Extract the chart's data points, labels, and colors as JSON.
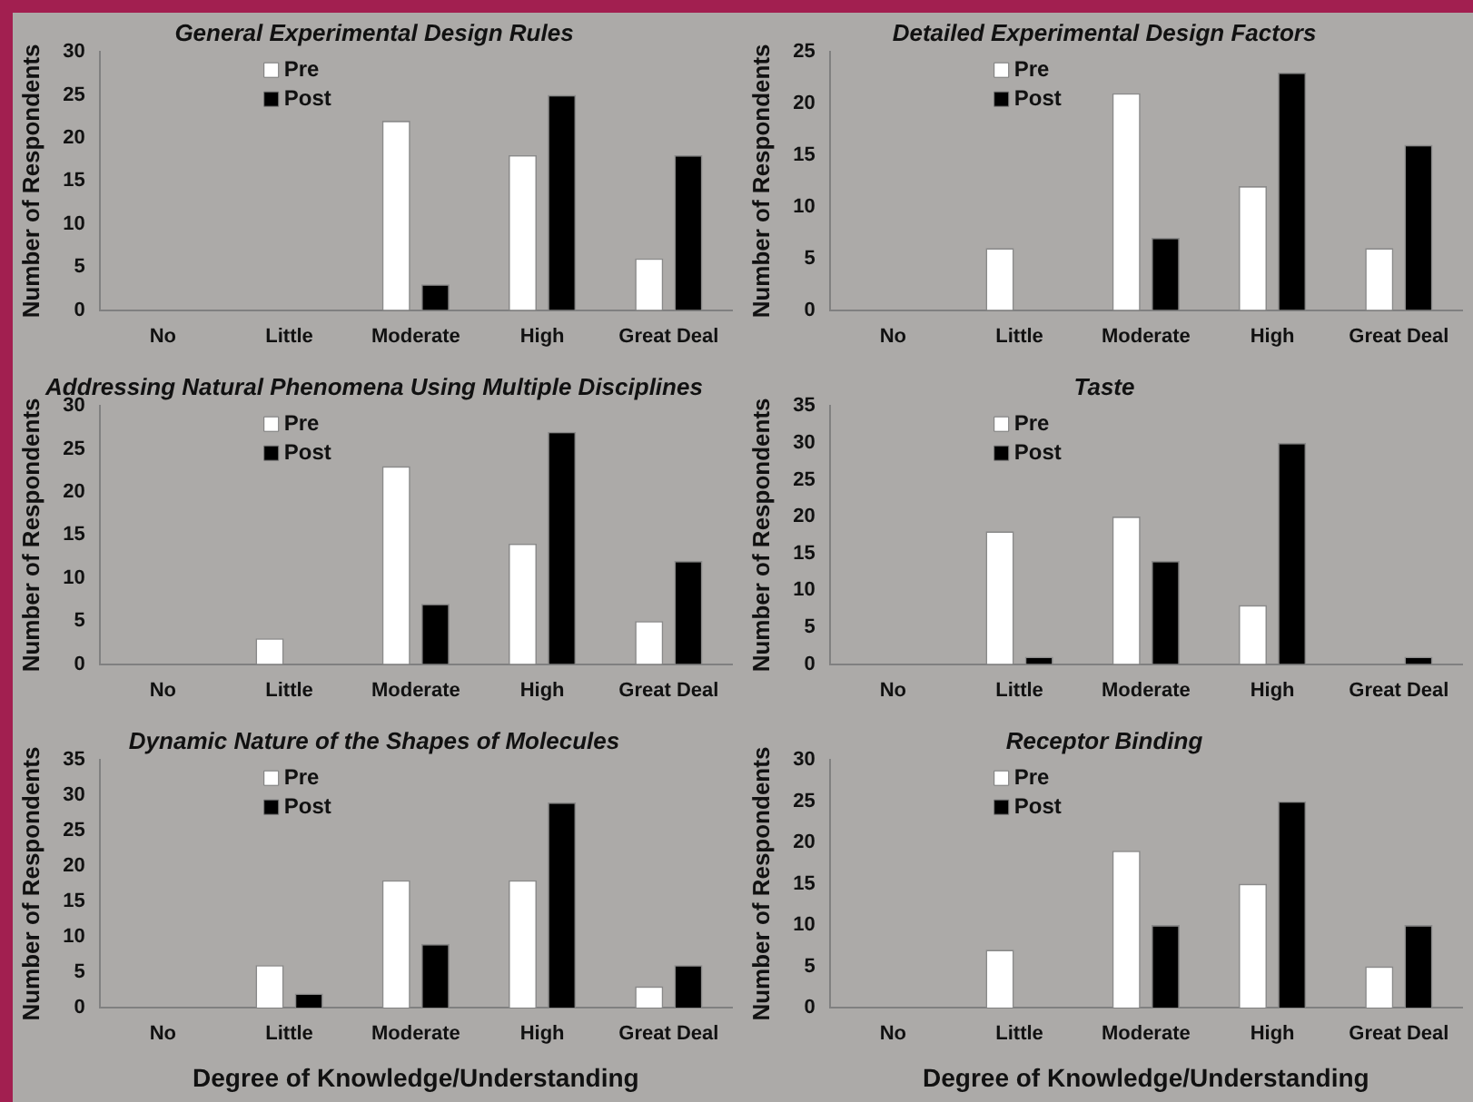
{
  "chart_data": [
    {
      "type": "bar",
      "title": "General Experimental Design Rules",
      "ylabel": "Number of Respondents",
      "categories": [
        "No",
        "Little",
        "Moderate",
        "High",
        "Great Deal"
      ],
      "series": [
        {
          "name": "Pre",
          "color": "#ffffff",
          "values": [
            0,
            0,
            22,
            18,
            6
          ]
        },
        {
          "name": "Post",
          "color": "#000000",
          "values": [
            0,
            0,
            3,
            25,
            18
          ]
        }
      ],
      "ylim": [
        0,
        30
      ],
      "yticks": [
        0,
        5,
        10,
        15,
        20,
        25,
        30
      ],
      "grid": false,
      "legend": "top left"
    },
    {
      "type": "bar",
      "title": "Detailed Experimental Design Factors",
      "ylabel": "Number of Respondents",
      "categories": [
        "No",
        "Little",
        "Moderate",
        "High",
        "Great Deal"
      ],
      "series": [
        {
          "name": "Pre",
          "color": "#ffffff",
          "values": [
            0,
            6,
            21,
            12,
            6
          ]
        },
        {
          "name": "Post",
          "color": "#000000",
          "values": [
            0,
            0,
            7,
            23,
            16
          ]
        }
      ],
      "ylim": [
        0,
        25
      ],
      "yticks": [
        0,
        5,
        10,
        15,
        20,
        25
      ],
      "grid": false,
      "legend": "top left"
    },
    {
      "type": "bar",
      "title": "Addressing Natural Phenomena Using Multiple Disciplines",
      "ylabel": "Number of Respondents",
      "categories": [
        "No",
        "Little",
        "Moderate",
        "High",
        "Great Deal"
      ],
      "series": [
        {
          "name": "Pre",
          "color": "#ffffff",
          "values": [
            0,
            3,
            23,
            14,
            5
          ]
        },
        {
          "name": "Post",
          "color": "#000000",
          "values": [
            0,
            0,
            7,
            27,
            12
          ]
        }
      ],
      "ylim": [
        0,
        30
      ],
      "yticks": [
        0,
        5,
        10,
        15,
        20,
        25,
        30
      ],
      "grid": false,
      "legend": "top left"
    },
    {
      "type": "bar",
      "title": "Taste",
      "ylabel": "Number of Respondents",
      "categories": [
        "No",
        "Little",
        "Moderate",
        "High",
        "Great Deal"
      ],
      "series": [
        {
          "name": "Pre",
          "color": "#ffffff",
          "values": [
            0,
            18,
            20,
            8,
            0
          ]
        },
        {
          "name": "Post",
          "color": "#000000",
          "values": [
            0,
            1,
            14,
            30,
            1
          ]
        }
      ],
      "ylim": [
        0,
        35
      ],
      "yticks": [
        0,
        5,
        10,
        15,
        20,
        25,
        30,
        35
      ],
      "grid": false,
      "legend": "top left"
    },
    {
      "type": "bar",
      "title": "Dynamic Nature of the Shapes of Molecules",
      "xlabel": "Degree of Knowledge/Understanding",
      "ylabel": "Number of Respondents",
      "categories": [
        "No",
        "Little",
        "Moderate",
        "High",
        "Great Deal"
      ],
      "series": [
        {
          "name": "Pre",
          "color": "#ffffff",
          "values": [
            0,
            6,
            18,
            18,
            3
          ]
        },
        {
          "name": "Post",
          "color": "#000000",
          "values": [
            0,
            2,
            9,
            29,
            6
          ]
        }
      ],
      "ylim": [
        0,
        35
      ],
      "yticks": [
        0,
        5,
        10,
        15,
        20,
        25,
        30,
        35
      ],
      "grid": false,
      "legend": "top left"
    },
    {
      "type": "bar",
      "title": "Receptor Binding",
      "xlabel": "Degree of Knowledge/Understanding",
      "ylabel": "Number of Respondents",
      "categories": [
        "No",
        "Little",
        "Moderate",
        "High",
        "Great Deal"
      ],
      "series": [
        {
          "name": "Pre",
          "color": "#ffffff",
          "values": [
            0,
            7,
            19,
            15,
            5
          ]
        },
        {
          "name": "Post",
          "color": "#000000",
          "values": [
            0,
            0,
            10,
            25,
            10
          ]
        }
      ],
      "ylim": [
        0,
        30
      ],
      "yticks": [
        0,
        5,
        10,
        15,
        20,
        25,
        30
      ],
      "grid": false,
      "legend": "top left"
    }
  ]
}
